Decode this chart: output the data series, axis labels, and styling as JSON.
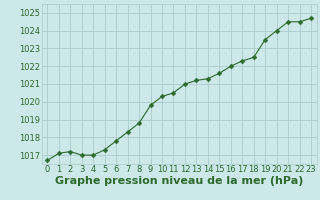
{
  "x": [
    0,
    1,
    2,
    3,
    4,
    5,
    6,
    7,
    8,
    9,
    10,
    11,
    12,
    13,
    14,
    15,
    16,
    17,
    18,
    19,
    20,
    21,
    22,
    23
  ],
  "y": [
    1016.7,
    1017.1,
    1017.2,
    1017.0,
    1017.0,
    1017.3,
    1017.8,
    1018.3,
    1018.8,
    1019.8,
    1020.3,
    1020.5,
    1021.0,
    1021.2,
    1021.3,
    1021.6,
    1022.0,
    1022.3,
    1022.5,
    1023.5,
    1024.0,
    1024.5,
    1024.5,
    1024.7
  ],
  "ylim": [
    1016.5,
    1025.5
  ],
  "xlim": [
    -0.5,
    23.5
  ],
  "yticks": [
    1017,
    1018,
    1019,
    1020,
    1021,
    1022,
    1023,
    1024,
    1025
  ],
  "xticks": [
    0,
    1,
    2,
    3,
    4,
    5,
    6,
    7,
    8,
    9,
    10,
    11,
    12,
    13,
    14,
    15,
    16,
    17,
    18,
    19,
    20,
    21,
    22,
    23
  ],
  "xlabel": "Graphe pression niveau de la mer (hPa)",
  "line_color": "#2d6a2d",
  "marker": "D",
  "marker_size": 2.5,
  "bg_color": "#cce8e8",
  "grid_color": "#aacccc",
  "label_color": "#2d6a2d",
  "tick_fontsize": 6,
  "xlabel_fontsize": 8,
  "ytick_labels": [
    "1017",
    "1018",
    "1019",
    "1020",
    "1021",
    "1022",
    "1023",
    "1024",
    "1025"
  ]
}
